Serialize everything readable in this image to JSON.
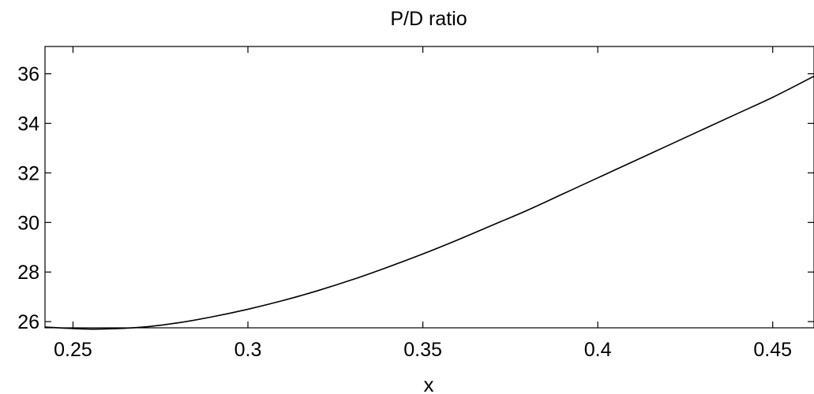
{
  "chart_data": {
    "type": "line",
    "title": "P/D ratio",
    "xlabel": "x",
    "ylabel": "",
    "xlim": [
      0.242,
      0.4618
    ],
    "ylim": [
      25.75,
      37.1
    ],
    "x_ticks": [
      0.25,
      0.3,
      0.35,
      0.4,
      0.45
    ],
    "x_tick_labels": [
      "0.25",
      "0.3",
      "0.35",
      "0.4",
      "0.45"
    ],
    "y_ticks": [
      26,
      28,
      30,
      32,
      34,
      36
    ],
    "y_tick_labels": [
      "26",
      "28",
      "30",
      "32",
      "34",
      "36"
    ],
    "grid": false,
    "series": [
      {
        "color": "#000000",
        "x": [
          0.242,
          0.25,
          0.258,
          0.27,
          0.28,
          0.29,
          0.3,
          0.31,
          0.32,
          0.33,
          0.34,
          0.35,
          0.36,
          0.37,
          0.38,
          0.39,
          0.4,
          0.41,
          0.42,
          0.43,
          0.44,
          0.45,
          0.4618
        ],
        "y": [
          25.78,
          25.72,
          25.7,
          25.78,
          25.95,
          26.2,
          26.5,
          26.85,
          27.25,
          27.7,
          28.2,
          28.73,
          29.3,
          29.9,
          30.5,
          31.15,
          31.8,
          32.45,
          33.1,
          33.75,
          34.4,
          35.05,
          35.9
        ]
      }
    ]
  }
}
